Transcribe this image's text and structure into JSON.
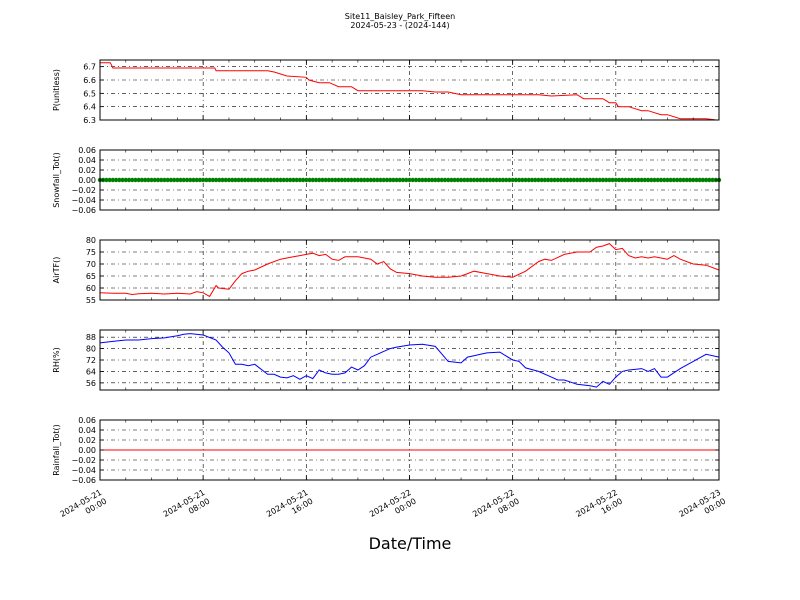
{
  "figure": {
    "title": "Site11_Baisley_Park_Fifteen",
    "subtitle": "2024-05-23 - (2024-144)",
    "xlabel": "Date/Time"
  },
  "chart_data": {
    "type": "line",
    "x_range": [
      "2024-05-21 00:00",
      "2024-05-23 00:00"
    ],
    "x_ticks": [
      "2024-05-21 00:00",
      "2024-05-21 08:00",
      "2024-05-21 16:00",
      "2024-05-22 00:00",
      "2024-05-22 08:00",
      "2024-05-22 16:00",
      "2024-05-23 00:00"
    ],
    "x_tick_labels": [
      [
        "2024-05-21",
        "00:00"
      ],
      [
        "2024-05-21",
        "08:00"
      ],
      [
        "2024-05-21",
        "16:00"
      ],
      [
        "2024-05-22",
        "00:00"
      ],
      [
        "2024-05-22",
        "08:00"
      ],
      [
        "2024-05-22",
        "16:00"
      ],
      [
        "2024-05-23",
        "00:00"
      ]
    ],
    "grid": true,
    "panels": [
      {
        "ylabel": "P(unitless)",
        "color": "#ff0000",
        "style": "line",
        "ylim": [
          6.3,
          6.75
        ],
        "yticks": [
          6.3,
          6.4,
          6.5,
          6.6,
          6.7
        ],
        "ytick_labels": [
          "6.3",
          "6.4",
          "6.5",
          "6.6",
          "6.7"
        ],
        "x_hours": [
          0,
          0.8,
          1,
          4,
          6,
          7.9,
          8.9,
          9,
          13,
          13.5,
          14.5,
          16,
          16.2,
          17,
          17.8,
          18.5,
          19.5,
          20,
          24,
          25,
          26,
          27,
          28,
          29,
          30,
          32,
          33,
          34,
          35,
          37,
          37.5,
          38,
          39,
          39.5,
          40,
          40.2,
          41,
          42,
          42.5,
          43.5,
          44,
          45,
          46,
          46.5,
          47,
          47.8,
          48
        ],
        "values": [
          6.73,
          6.73,
          6.69,
          6.69,
          6.69,
          6.69,
          6.69,
          6.67,
          6.67,
          6.66,
          6.63,
          6.62,
          6.6,
          6.58,
          6.58,
          6.55,
          6.55,
          6.52,
          6.52,
          6.52,
          6.51,
          6.51,
          6.49,
          6.49,
          6.49,
          6.49,
          6.49,
          6.49,
          6.48,
          6.49,
          6.46,
          6.46,
          6.46,
          6.43,
          6.43,
          6.4,
          6.4,
          6.37,
          6.37,
          6.34,
          6.34,
          6.31,
          6.31,
          6.31,
          6.31,
          6.3,
          6.3
        ]
      },
      {
        "ylabel": "Snowfall_Tot()",
        "color": "#008000",
        "style": "dots",
        "ylim": [
          -0.06,
          0.06
        ],
        "yticks": [
          -0.06,
          -0.04,
          -0.02,
          0.0,
          0.02,
          0.04,
          0.06
        ],
        "ytick_labels": [
          "−0.06",
          "−0.04",
          "−0.02",
          "0.00",
          "0.02",
          "0.04",
          "0.06"
        ],
        "x_hours": [
          0,
          48
        ],
        "values": [
          0.0,
          0.0
        ]
      },
      {
        "ylabel": "AirTF()",
        "color": "#ff0000",
        "style": "line",
        "ylim": [
          55,
          80
        ],
        "yticks": [
          55,
          60,
          65,
          70,
          75,
          80
        ],
        "ytick_labels": [
          "55",
          "60",
          "65",
          "70",
          "75",
          "80"
        ],
        "x_hours": [
          0,
          1,
          2,
          2.5,
          3,
          4,
          5,
          6,
          7,
          7.5,
          8,
          8.5,
          9,
          9.2,
          10,
          10.5,
          11,
          11.5,
          12,
          13,
          14,
          15,
          15.5,
          16,
          16.5,
          17,
          17.5,
          18,
          18.5,
          19,
          20,
          20.5,
          21,
          21.5,
          22,
          22.5,
          23,
          24,
          25,
          26,
          27,
          28,
          28.5,
          29,
          30,
          31,
          32,
          33,
          34,
          34.5,
          35,
          36,
          37,
          38,
          38.5,
          39,
          39.5,
          40,
          40.5,
          41,
          41.5,
          42,
          42.5,
          43,
          43.5,
          44,
          44.5,
          45,
          46,
          47,
          48
        ],
        "values": [
          58,
          57.8,
          57.8,
          57.3,
          57.6,
          57.8,
          57.5,
          57.8,
          57.5,
          58.5,
          58.0,
          56.5,
          61,
          60,
          59.5,
          63,
          66,
          67,
          67.5,
          70,
          72,
          73,
          73.5,
          74,
          74.5,
          73.5,
          74,
          72,
          71.5,
          73,
          73,
          72.5,
          72,
          70,
          71,
          68,
          66.5,
          66,
          65,
          64.5,
          64.5,
          65,
          66,
          67,
          66,
          65,
          64.5,
          67,
          71,
          72,
          71.5,
          74,
          75,
          75,
          77,
          77.5,
          78.5,
          76,
          76.5,
          73.5,
          72.5,
          73,
          72.5,
          73,
          72.5,
          72,
          73.5,
          72,
          70,
          69.5,
          67.5
        ]
      },
      {
        "ylabel": "RH(%)",
        "color": "#0000ff",
        "style": "line",
        "ylim": [
          51,
          93
        ],
        "yticks": [
          56,
          64,
          72,
          80,
          88
        ],
        "ytick_labels": [
          "56",
          "64",
          "72",
          "80",
          "88"
        ],
        "x_hours": [
          0,
          1,
          2,
          3,
          4,
          5,
          6,
          6.5,
          7,
          8,
          9,
          9.5,
          10,
          10.5,
          11,
          11.5,
          12,
          13,
          13.5,
          14,
          14.5,
          15,
          15.5,
          16,
          16.5,
          17,
          17.5,
          18,
          18.5,
          19,
          19.5,
          20,
          20.5,
          21,
          21.5,
          22,
          22.5,
          23,
          24,
          25,
          26,
          27,
          28,
          28.5,
          29,
          29.5,
          30,
          31,
          32,
          32.5,
          33,
          34,
          35,
          35.5,
          36,
          37,
          38,
          38.5,
          39,
          39.5,
          40,
          40.5,
          41,
          42,
          42.5,
          43,
          43.5,
          44,
          45,
          46,
          47,
          48
        ],
        "values": [
          84,
          85,
          86,
          86,
          87,
          87.5,
          89,
          90,
          90.5,
          89.5,
          86,
          81,
          77,
          69,
          69,
          68,
          69,
          62,
          62,
          60,
          59.5,
          61,
          58.5,
          61,
          59,
          65,
          63,
          62,
          62,
          63,
          67,
          65,
          68,
          74,
          76,
          78,
          80,
          81,
          82.5,
          83,
          81.5,
          71,
          70,
          74,
          75,
          76,
          77,
          77.5,
          72,
          71,
          66.5,
          64,
          60,
          58,
          58,
          55,
          54,
          53,
          57,
          55,
          60,
          64,
          65,
          66,
          64,
          66,
          60,
          60,
          66,
          71,
          76,
          74
        ]
      },
      {
        "ylabel": "Rainfall_Tot()",
        "color": "#ff0000",
        "style": "line",
        "ylim": [
          -0.06,
          0.06
        ],
        "yticks": [
          -0.06,
          -0.04,
          -0.02,
          0.0,
          0.02,
          0.04,
          0.06
        ],
        "ytick_labels": [
          "−0.06",
          "−0.04",
          "−0.02",
          "0.00",
          "0.02",
          "0.04",
          "0.06"
        ],
        "x_hours": [
          0,
          48
        ],
        "values": [
          0.0,
          0.0
        ]
      }
    ]
  }
}
